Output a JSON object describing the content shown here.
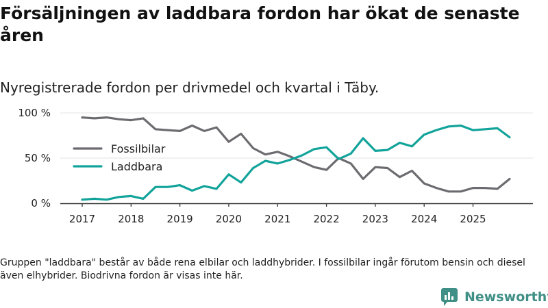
{
  "title": "Försäljningen av laddbara fordon har ökat de senaste åren",
  "subtitle": "Nyregistrerade fordon per drivmedel och kvartal i Täby.",
  "footnote": "Gruppen \"laddbara\" består av både rena elbilar och laddhybrider. I fossilbilar ingår förutom bensin och diesel även elhybrider. Biodrivna fordon är visas inte här.",
  "brand": {
    "name": "Newsworthy",
    "icon": "bar-chart-speech-bubble-icon",
    "color": "#3f8f86"
  },
  "chart_data": {
    "type": "line",
    "title": "Försäljningen av laddbara fordon har ökat de senaste åren",
    "subtitle": "Nyregistrerade fordon per drivmedel och kvartal i Täby.",
    "xlabel": "",
    "ylabel": "",
    "x_start": 2017,
    "quarters_per_year": 4,
    "xlim": [
      2017,
      2025.75
    ],
    "ylim": [
      0,
      100
    ],
    "y_ticks": [
      0,
      50,
      100
    ],
    "y_tick_labels": [
      "0 %",
      "50 %",
      "100 %"
    ],
    "x_ticks": [
      2017,
      2018,
      2019,
      2020,
      2021,
      2022,
      2023,
      2024,
      2025
    ],
    "x_tick_labels": [
      "2017",
      "2018",
      "2019",
      "2020",
      "2021",
      "2022",
      "2023",
      "2024",
      "2025"
    ],
    "grid": true,
    "legend_position": "center-left",
    "series": [
      {
        "name": "Fossilbilar",
        "color": "#6d6b70",
        "values": [
          95,
          94,
          95,
          93,
          92,
          94,
          82,
          81,
          80,
          86,
          80,
          84,
          68,
          77,
          61,
          54,
          57,
          52,
          46,
          40,
          37,
          50,
          44,
          27,
          40,
          39,
          29,
          36,
          22,
          17,
          13,
          13,
          17,
          17,
          16,
          27
        ]
      },
      {
        "name": "Laddbara",
        "color": "#12a39a",
        "values": [
          4,
          5,
          4,
          7,
          8,
          5,
          18,
          18,
          20,
          14,
          19,
          16,
          32,
          23,
          39,
          47,
          44,
          48,
          53,
          60,
          62,
          49,
          55,
          72,
          58,
          59,
          67,
          63,
          76,
          81,
          85,
          86,
          81,
          82,
          83,
          73
        ]
      }
    ]
  }
}
